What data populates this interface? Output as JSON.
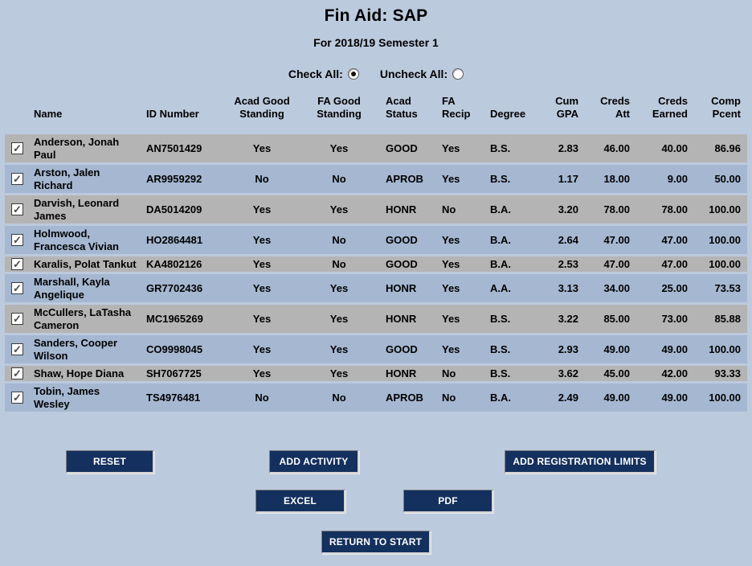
{
  "header": {
    "title": "Fin Aid: SAP",
    "subtitle": "For 2018/19 Semester 1"
  },
  "controls": {
    "check_all_label": "Check All:",
    "uncheck_all_label": "Uncheck All:",
    "check_all_selected": true,
    "uncheck_all_selected": false
  },
  "table": {
    "headers": [
      "Name",
      "ID Number",
      "Acad Good Standing",
      "FA Good Standing",
      "Acad Status",
      "FA Recip",
      "Degree",
      "Cum GPA",
      "Creds Att",
      "Creds Earned",
      "Comp Pcent"
    ],
    "rows": [
      {
        "checked": true,
        "name": "Anderson, Jonah Paul",
        "id_number": "AN7501429",
        "acad_good_standing": "Yes",
        "fa_good_standing": "Yes",
        "acad_status": "GOOD",
        "fa_recip": "Yes",
        "degree": "B.S.",
        "cum_gpa": "2.83",
        "creds_att": "46.00",
        "creds_earned": "40.00",
        "comp_pcent": "86.96"
      },
      {
        "checked": true,
        "name": "Arston, Jalen Richard",
        "id_number": "AR9959292",
        "acad_good_standing": "No",
        "fa_good_standing": "No",
        "acad_status": "APROB",
        "fa_recip": "Yes",
        "degree": "B.S.",
        "cum_gpa": "1.17",
        "creds_att": "18.00",
        "creds_earned": "9.00",
        "comp_pcent": "50.00"
      },
      {
        "checked": true,
        "name": "Darvish, Leonard James",
        "id_number": "DA5014209",
        "acad_good_standing": "Yes",
        "fa_good_standing": "Yes",
        "acad_status": "HONR",
        "fa_recip": "No",
        "degree": "B.A.",
        "cum_gpa": "3.20",
        "creds_att": "78.00",
        "creds_earned": "78.00",
        "comp_pcent": "100.00"
      },
      {
        "checked": true,
        "name": "Holmwood, Francesca Vivian",
        "id_number": "HO2864481",
        "acad_good_standing": "Yes",
        "fa_good_standing": "No",
        "acad_status": "GOOD",
        "fa_recip": "Yes",
        "degree": "B.A.",
        "cum_gpa": "2.64",
        "creds_att": "47.00",
        "creds_earned": "47.00",
        "comp_pcent": "100.00"
      },
      {
        "checked": true,
        "name": "Karalis, Polat Tankut",
        "id_number": "KA4802126",
        "acad_good_standing": "Yes",
        "fa_good_standing": "No",
        "acad_status": "GOOD",
        "fa_recip": "Yes",
        "degree": "B.A.",
        "cum_gpa": "2.53",
        "creds_att": "47.00",
        "creds_earned": "47.00",
        "comp_pcent": "100.00"
      },
      {
        "checked": true,
        "name": "Marshall, Kayla Angelique",
        "id_number": "GR7702436",
        "acad_good_standing": "Yes",
        "fa_good_standing": "Yes",
        "acad_status": "HONR",
        "fa_recip": "Yes",
        "degree": "A.A.",
        "cum_gpa": "3.13",
        "creds_att": "34.00",
        "creds_earned": "25.00",
        "comp_pcent": "73.53"
      },
      {
        "checked": true,
        "name": "McCullers, LaTasha Cameron",
        "id_number": "MC1965269",
        "acad_good_standing": "Yes",
        "fa_good_standing": "Yes",
        "acad_status": "HONR",
        "fa_recip": "Yes",
        "degree": "B.S.",
        "cum_gpa": "3.22",
        "creds_att": "85.00",
        "creds_earned": "73.00",
        "comp_pcent": "85.88"
      },
      {
        "checked": true,
        "name": "Sanders, Cooper Wilson",
        "id_number": "CO9998045",
        "acad_good_standing": "Yes",
        "fa_good_standing": "Yes",
        "acad_status": "GOOD",
        "fa_recip": "Yes",
        "degree": "B.S.",
        "cum_gpa": "2.93",
        "creds_att": "49.00",
        "creds_earned": "49.00",
        "comp_pcent": "100.00"
      },
      {
        "checked": true,
        "name": "Shaw, Hope Diana",
        "id_number": "SH7067725",
        "acad_good_standing": "Yes",
        "fa_good_standing": "Yes",
        "acad_status": "HONR",
        "fa_recip": "No",
        "degree": "B.S.",
        "cum_gpa": "3.62",
        "creds_att": "45.00",
        "creds_earned": "42.00",
        "comp_pcent": "93.33"
      },
      {
        "checked": true,
        "name": "Tobin, James Wesley",
        "id_number": "TS4976481",
        "acad_good_standing": "No",
        "fa_good_standing": "No",
        "acad_status": "APROB",
        "fa_recip": "No",
        "degree": "B.A.",
        "cum_gpa": "2.49",
        "creds_att": "49.00",
        "creds_earned": "49.00",
        "comp_pcent": "100.00"
      }
    ]
  },
  "buttons": {
    "reset": "RESET",
    "add_activity": "ADD ACTIVITY",
    "add_registration_limits": "ADD REGISTRATION LIMITS",
    "excel": "EXCEL",
    "pdf": "PDF",
    "return_to_start": "RETURN TO START"
  },
  "colors": {
    "page_background": "#bccadd",
    "row_gray": "#b4b4b4",
    "row_blue": "#a5b7d1",
    "button_navy": "#14305e",
    "button_text": "#ffffff"
  }
}
